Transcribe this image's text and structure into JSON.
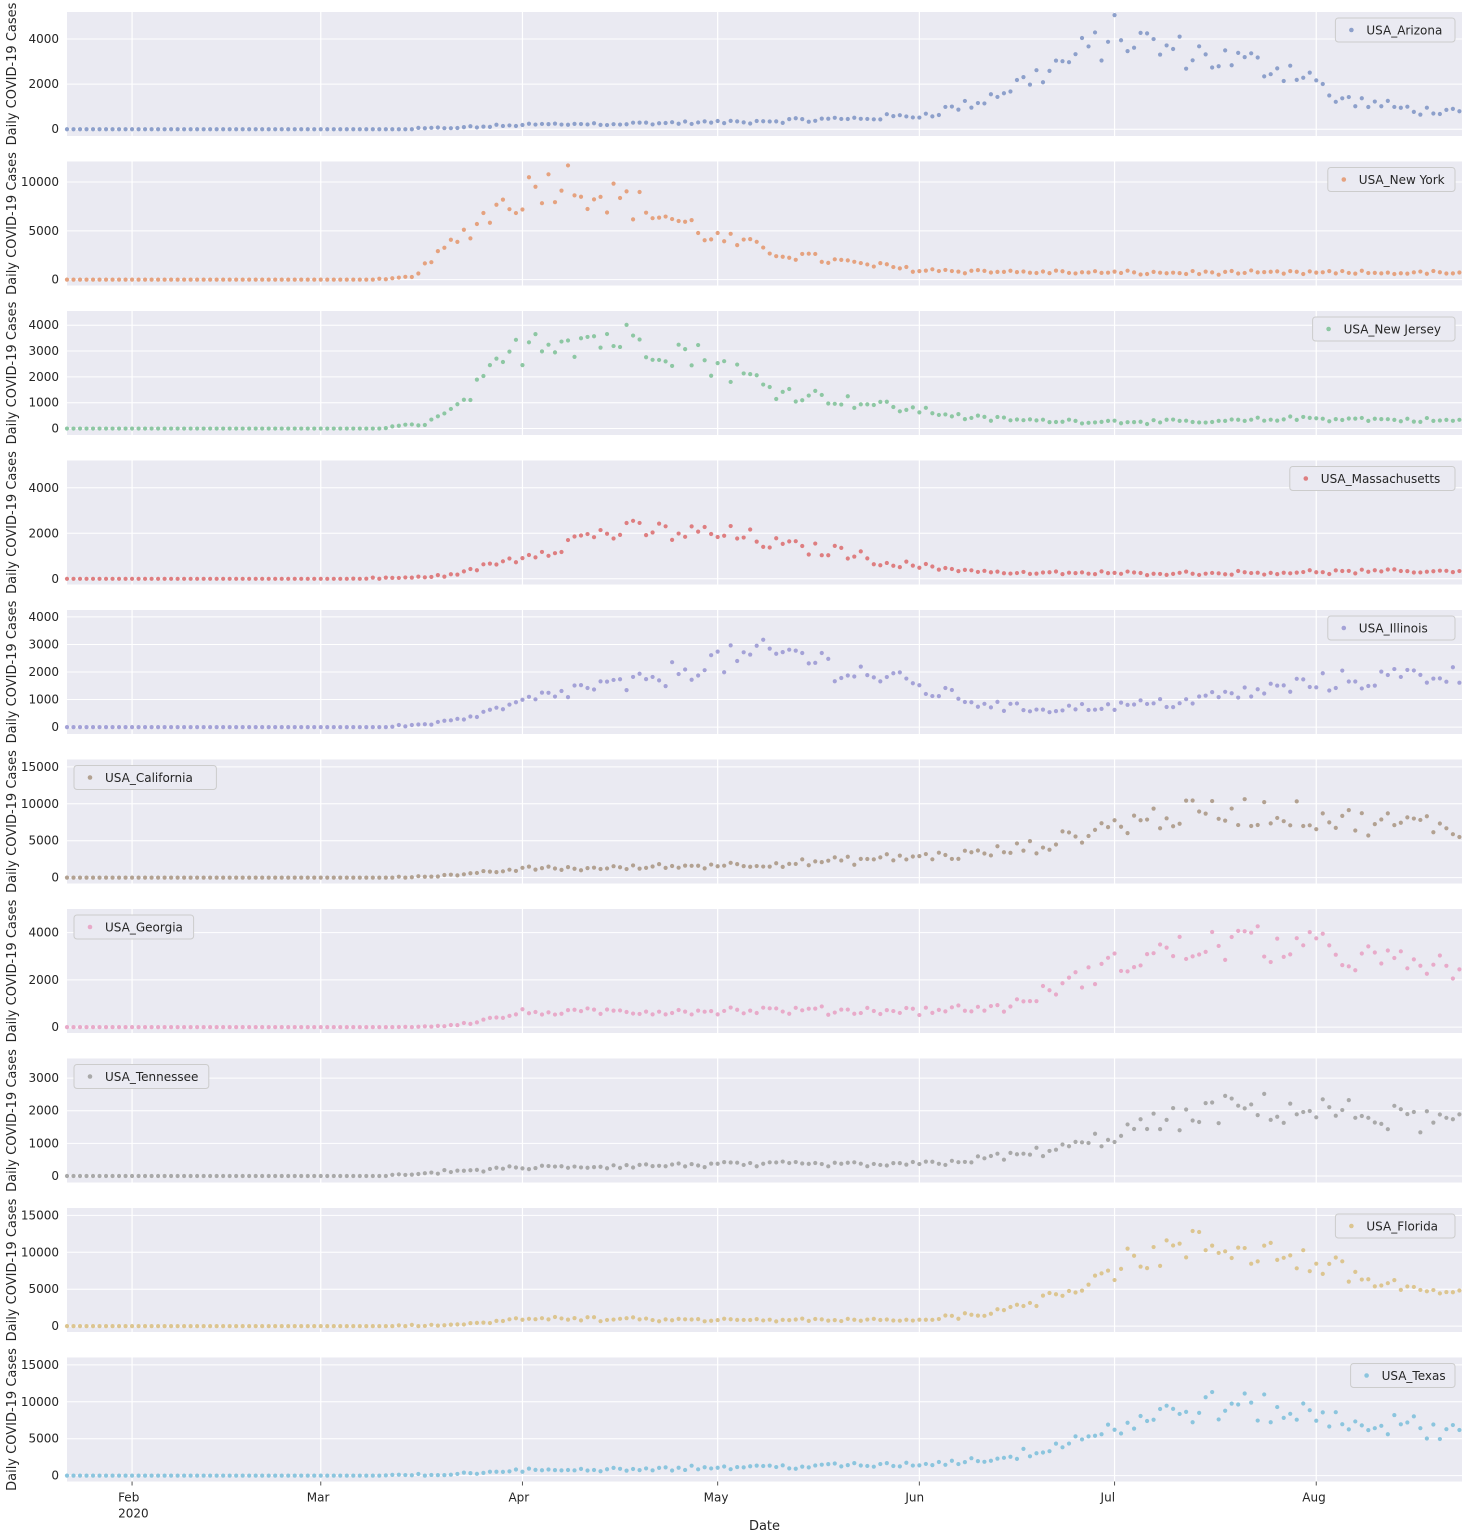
{
  "chart_data": {
    "type": "scatter",
    "x_axis": {
      "label": "Date",
      "start_date": "2020-01-22",
      "end_date": "2020-08-23",
      "ticks": [
        {
          "label": "Feb",
          "sub": "2020",
          "date": "2020-02-01"
        },
        {
          "label": "Mar",
          "sub": "",
          "date": "2020-03-01"
        },
        {
          "label": "Apr",
          "sub": "",
          "date": "2020-04-01"
        },
        {
          "label": "May",
          "sub": "",
          "date": "2020-05-01"
        },
        {
          "label": "Jun",
          "sub": "",
          "date": "2020-06-01"
        },
        {
          "label": "Jul",
          "sub": "",
          "date": "2020-07-01"
        },
        {
          "label": "Aug",
          "sub": "",
          "date": "2020-08-01"
        }
      ]
    },
    "ylabel": "Daily COVID-19 Cases",
    "grid": true,
    "panels": [
      {
        "name": "USA_Arizona",
        "color": "#8da0cb",
        "legend": "top-right",
        "ylim": [
          -300,
          5200
        ],
        "yticks": [
          0,
          2000,
          4000
        ],
        "anchors": [
          [
            "2020-01-22",
            0
          ],
          [
            "2020-03-14",
            0
          ],
          [
            "2020-03-25",
            100
          ],
          [
            "2020-04-01",
            200
          ],
          [
            "2020-05-01",
            300
          ],
          [
            "2020-05-20",
            450
          ],
          [
            "2020-06-01",
            600
          ],
          [
            "2020-06-10",
            1200
          ],
          [
            "2020-06-20",
            2500
          ],
          [
            "2020-06-27",
            3500
          ],
          [
            "2020-07-01",
            4200
          ],
          [
            "2020-07-08",
            3600
          ],
          [
            "2020-07-20",
            3000
          ],
          [
            "2020-07-31",
            2500
          ],
          [
            "2020-08-03",
            1400
          ],
          [
            "2020-08-15",
            900
          ],
          [
            "2020-08-23",
            700
          ]
        ]
      },
      {
        "name": "USA_New York",
        "color": "#e5a27f",
        "legend": "top-right",
        "ylim": [
          -600,
          12100
        ],
        "yticks": [
          0,
          5000,
          10000
        ],
        "anchors": [
          [
            "2020-01-22",
            0
          ],
          [
            "2020-03-09",
            0
          ],
          [
            "2020-03-15",
            300
          ],
          [
            "2020-03-20",
            3000
          ],
          [
            "2020-03-27",
            7000
          ],
          [
            "2020-04-03",
            9500
          ],
          [
            "2020-04-07",
            10500
          ],
          [
            "2020-04-12",
            9000
          ],
          [
            "2020-04-17",
            8000
          ],
          [
            "2020-04-25",
            6000
          ],
          [
            "2020-05-01",
            4200
          ],
          [
            "2020-05-10",
            2800
          ],
          [
            "2020-05-20",
            1800
          ],
          [
            "2020-06-01",
            1000
          ],
          [
            "2020-06-15",
            800
          ],
          [
            "2020-07-01",
            700
          ],
          [
            "2020-08-23",
            700
          ]
        ]
      },
      {
        "name": "USA_New Jersey",
        "color": "#8dc7a3",
        "legend": "top-right",
        "ylim": [
          -250,
          4550
        ],
        "yticks": [
          0,
          1000,
          2000,
          3000,
          4000
        ],
        "anchors": [
          [
            "2020-01-22",
            0
          ],
          [
            "2020-03-10",
            0
          ],
          [
            "2020-03-17",
            200
          ],
          [
            "2020-03-22",
            800
          ],
          [
            "2020-03-28",
            2300
          ],
          [
            "2020-04-03",
            3600
          ],
          [
            "2020-04-15",
            3500
          ],
          [
            "2020-04-22",
            3300
          ],
          [
            "2020-05-01",
            2500
          ],
          [
            "2020-05-10",
            1500
          ],
          [
            "2020-05-20",
            1100
          ],
          [
            "2020-06-01",
            700
          ],
          [
            "2020-06-10",
            400
          ],
          [
            "2020-06-20",
            300
          ],
          [
            "2020-07-15",
            250
          ],
          [
            "2020-07-30",
            400
          ],
          [
            "2020-08-23",
            300
          ]
        ]
      },
      {
        "name": "USA_Massachusetts",
        "color": "#de7e80",
        "legend": "top-right",
        "ylim": [
          -250,
          5200
        ],
        "yticks": [
          0,
          2000,
          4000
        ],
        "anchors": [
          [
            "2020-01-22",
            0
          ],
          [
            "2020-03-05",
            0
          ],
          [
            "2020-03-15",
            50
          ],
          [
            "2020-03-22",
            200
          ],
          [
            "2020-03-28",
            700
          ],
          [
            "2020-04-05",
            1300
          ],
          [
            "2020-04-12",
            2000
          ],
          [
            "2020-04-20",
            2100
          ],
          [
            "2020-04-27",
            2000
          ],
          [
            "2020-05-04",
            1900
          ],
          [
            "2020-05-12",
            1400
          ],
          [
            "2020-05-20",
            1200
          ],
          [
            "2020-05-27",
            700
          ],
          [
            "2020-06-03",
            500
          ],
          [
            "2020-06-15",
            250
          ],
          [
            "2020-07-15",
            250
          ],
          [
            "2020-08-23",
            350
          ]
        ]
      },
      {
        "name": "USA_Illinois",
        "color": "#a4a2d7",
        "legend": "top-right",
        "ylim": [
          -250,
          4250
        ],
        "yticks": [
          0,
          1000,
          2000,
          3000,
          4000
        ],
        "anchors": [
          [
            "2020-01-22",
            0
          ],
          [
            "2020-03-10",
            0
          ],
          [
            "2020-03-17",
            100
          ],
          [
            "2020-03-25",
            400
          ],
          [
            "2020-04-01",
            900
          ],
          [
            "2020-04-10",
            1400
          ],
          [
            "2020-04-20",
            1600
          ],
          [
            "2020-04-28",
            2300
          ],
          [
            "2020-05-05",
            2500
          ],
          [
            "2020-05-13",
            2700
          ],
          [
            "2020-05-20",
            2100
          ],
          [
            "2020-05-27",
            1800
          ],
          [
            "2020-06-03",
            1300
          ],
          [
            "2020-06-10",
            900
          ],
          [
            "2020-06-17",
            650
          ],
          [
            "2020-06-30",
            750
          ],
          [
            "2020-07-10",
            900
          ],
          [
            "2020-07-20",
            1200
          ],
          [
            "2020-08-01",
            1600
          ],
          [
            "2020-08-23",
            2000
          ]
        ]
      },
      {
        "name": "USA_California",
        "color": "#b2a191",
        "legend": "top-left",
        "ylim": [
          -800,
          16000
        ],
        "yticks": [
          0,
          5000,
          10000,
          15000
        ],
        "anchors": [
          [
            "2020-01-22",
            0
          ],
          [
            "2020-03-12",
            0
          ],
          [
            "2020-03-22",
            300
          ],
          [
            "2020-04-01",
            1200
          ],
          [
            "2020-04-15",
            1300
          ],
          [
            "2020-05-01",
            1700
          ],
          [
            "2020-05-15",
            2000
          ],
          [
            "2020-05-31",
            2800
          ],
          [
            "2020-06-10",
            3200
          ],
          [
            "2020-06-20",
            4300
          ],
          [
            "2020-06-30",
            7000
          ],
          [
            "2020-07-10",
            8500
          ],
          [
            "2020-07-20",
            9000
          ],
          [
            "2020-07-30",
            8500
          ],
          [
            "2020-08-08",
            7500
          ],
          [
            "2020-08-23",
            7000
          ]
        ]
      },
      {
        "name": "USA_Georgia",
        "color": "#e8aac9",
        "legend": "top-left",
        "ylim": [
          -250,
          5000
        ],
        "yticks": [
          0,
          2000,
          4000
        ],
        "anchors": [
          [
            "2020-01-22",
            0
          ],
          [
            "2020-03-12",
            0
          ],
          [
            "2020-03-22",
            100
          ],
          [
            "2020-04-01",
            600
          ],
          [
            "2020-05-01",
            700
          ],
          [
            "2020-06-01",
            700
          ],
          [
            "2020-06-15",
            850
          ],
          [
            "2020-06-25",
            2000
          ],
          [
            "2020-07-05",
            3000
          ],
          [
            "2020-07-20",
            3600
          ],
          [
            "2020-08-01",
            3300
          ],
          [
            "2020-08-15",
            2600
          ],
          [
            "2020-08-23",
            2500
          ]
        ]
      },
      {
        "name": "USA_Tennessee",
        "color": "#a9a9a9",
        "legend": "top-left",
        "ylim": [
          -200,
          3600
        ],
        "yticks": [
          0,
          1000,
          2000,
          3000
        ],
        "anchors": [
          [
            "2020-01-22",
            0
          ],
          [
            "2020-03-10",
            0
          ],
          [
            "2020-03-22",
            150
          ],
          [
            "2020-04-01",
            250
          ],
          [
            "2020-05-01",
            350
          ],
          [
            "2020-05-31",
            350
          ],
          [
            "2020-06-15",
            600
          ],
          [
            "2020-06-25",
            900
          ],
          [
            "2020-07-05",
            1500
          ],
          [
            "2020-07-20",
            2100
          ],
          [
            "2020-08-01",
            2000
          ],
          [
            "2020-08-23",
            1600
          ]
        ]
      },
      {
        "name": "USA_Florida",
        "color": "#dcc590",
        "legend": "top-right",
        "ylim": [
          -800,
          16000
        ],
        "yticks": [
          0,
          5000,
          10000,
          15000
        ],
        "anchors": [
          [
            "2020-01-22",
            0
          ],
          [
            "2020-03-12",
            0
          ],
          [
            "2020-03-22",
            200
          ],
          [
            "2020-04-01",
            1000
          ],
          [
            "2020-05-01",
            800
          ],
          [
            "2020-06-01",
            800
          ],
          [
            "2020-06-15",
            2200
          ],
          [
            "2020-06-25",
            5500
          ],
          [
            "2020-07-05",
            9500
          ],
          [
            "2020-07-15",
            11000
          ],
          [
            "2020-07-25",
            10000
          ],
          [
            "2020-08-01",
            8500
          ],
          [
            "2020-08-10",
            6000
          ],
          [
            "2020-08-23",
            4000
          ]
        ]
      },
      {
        "name": "USA_Texas",
        "color": "#8bc5de",
        "legend": "top-right",
        "ylim": [
          -800,
          16000
        ],
        "yticks": [
          0,
          5000,
          10000,
          15000
        ],
        "anchors": [
          [
            "2020-01-22",
            0
          ],
          [
            "2020-03-10",
            0
          ],
          [
            "2020-03-22",
            200
          ],
          [
            "2020-04-01",
            700
          ],
          [
            "2020-05-01",
            1100
          ],
          [
            "2020-06-01",
            1500
          ],
          [
            "2020-06-15",
            2500
          ],
          [
            "2020-06-25",
            5000
          ],
          [
            "2020-07-05",
            7500
          ],
          [
            "2020-07-15",
            9500
          ],
          [
            "2020-07-25",
            9000
          ],
          [
            "2020-08-05",
            7500
          ],
          [
            "2020-08-23",
            6000
          ]
        ]
      }
    ]
  }
}
